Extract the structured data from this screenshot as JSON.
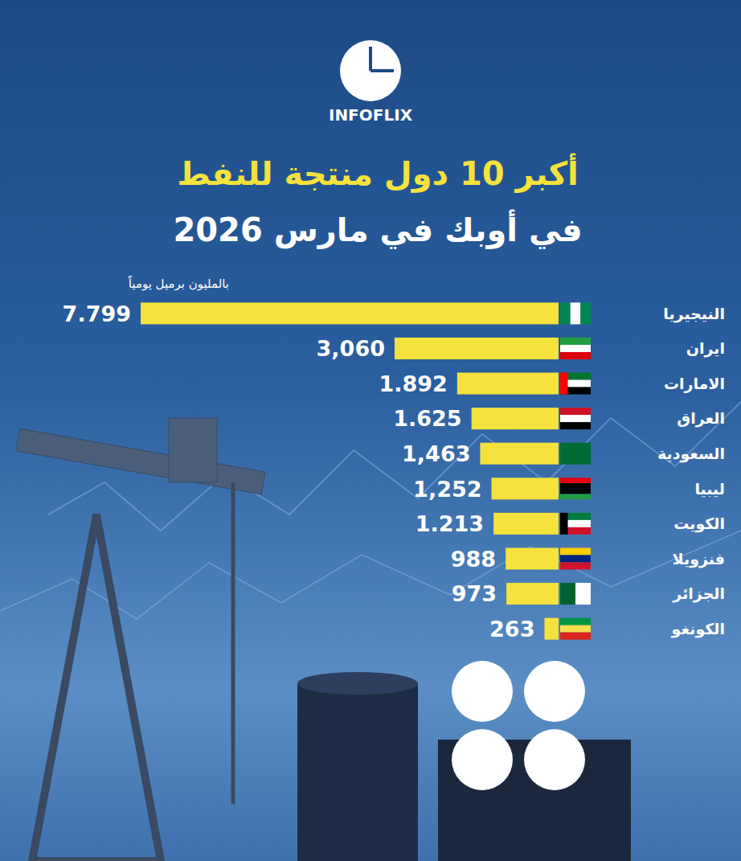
{
  "brand": "INFOFLIX",
  "chart_data": {
    "type": "bar",
    "orientation": "horizontal",
    "title": "أكبر 10 دول منتجة للنفط",
    "subtitle": "في أوبك في مارس 2026",
    "xlabel": "بالمليون برميل يومياً",
    "categories": [
      "النيجيريا",
      "ايران",
      "الامارات",
      "العراق",
      "السعودية",
      "ليبيا",
      "الكويت",
      "فنزويلا",
      "الجزائر",
      "الكونغو"
    ],
    "values": [
      7799,
      3060,
      1892,
      1625,
      1463,
      1252,
      1213,
      988,
      973,
      263
    ],
    "value_labels": [
      "7.799",
      "3,060",
      "1.892",
      "1.625",
      "1,463",
      "1,252",
      "1.213",
      "988",
      "973",
      "263"
    ],
    "color": "#f5e23c",
    "data_labels": true,
    "tick_labels": false,
    "grid": false
  }
}
